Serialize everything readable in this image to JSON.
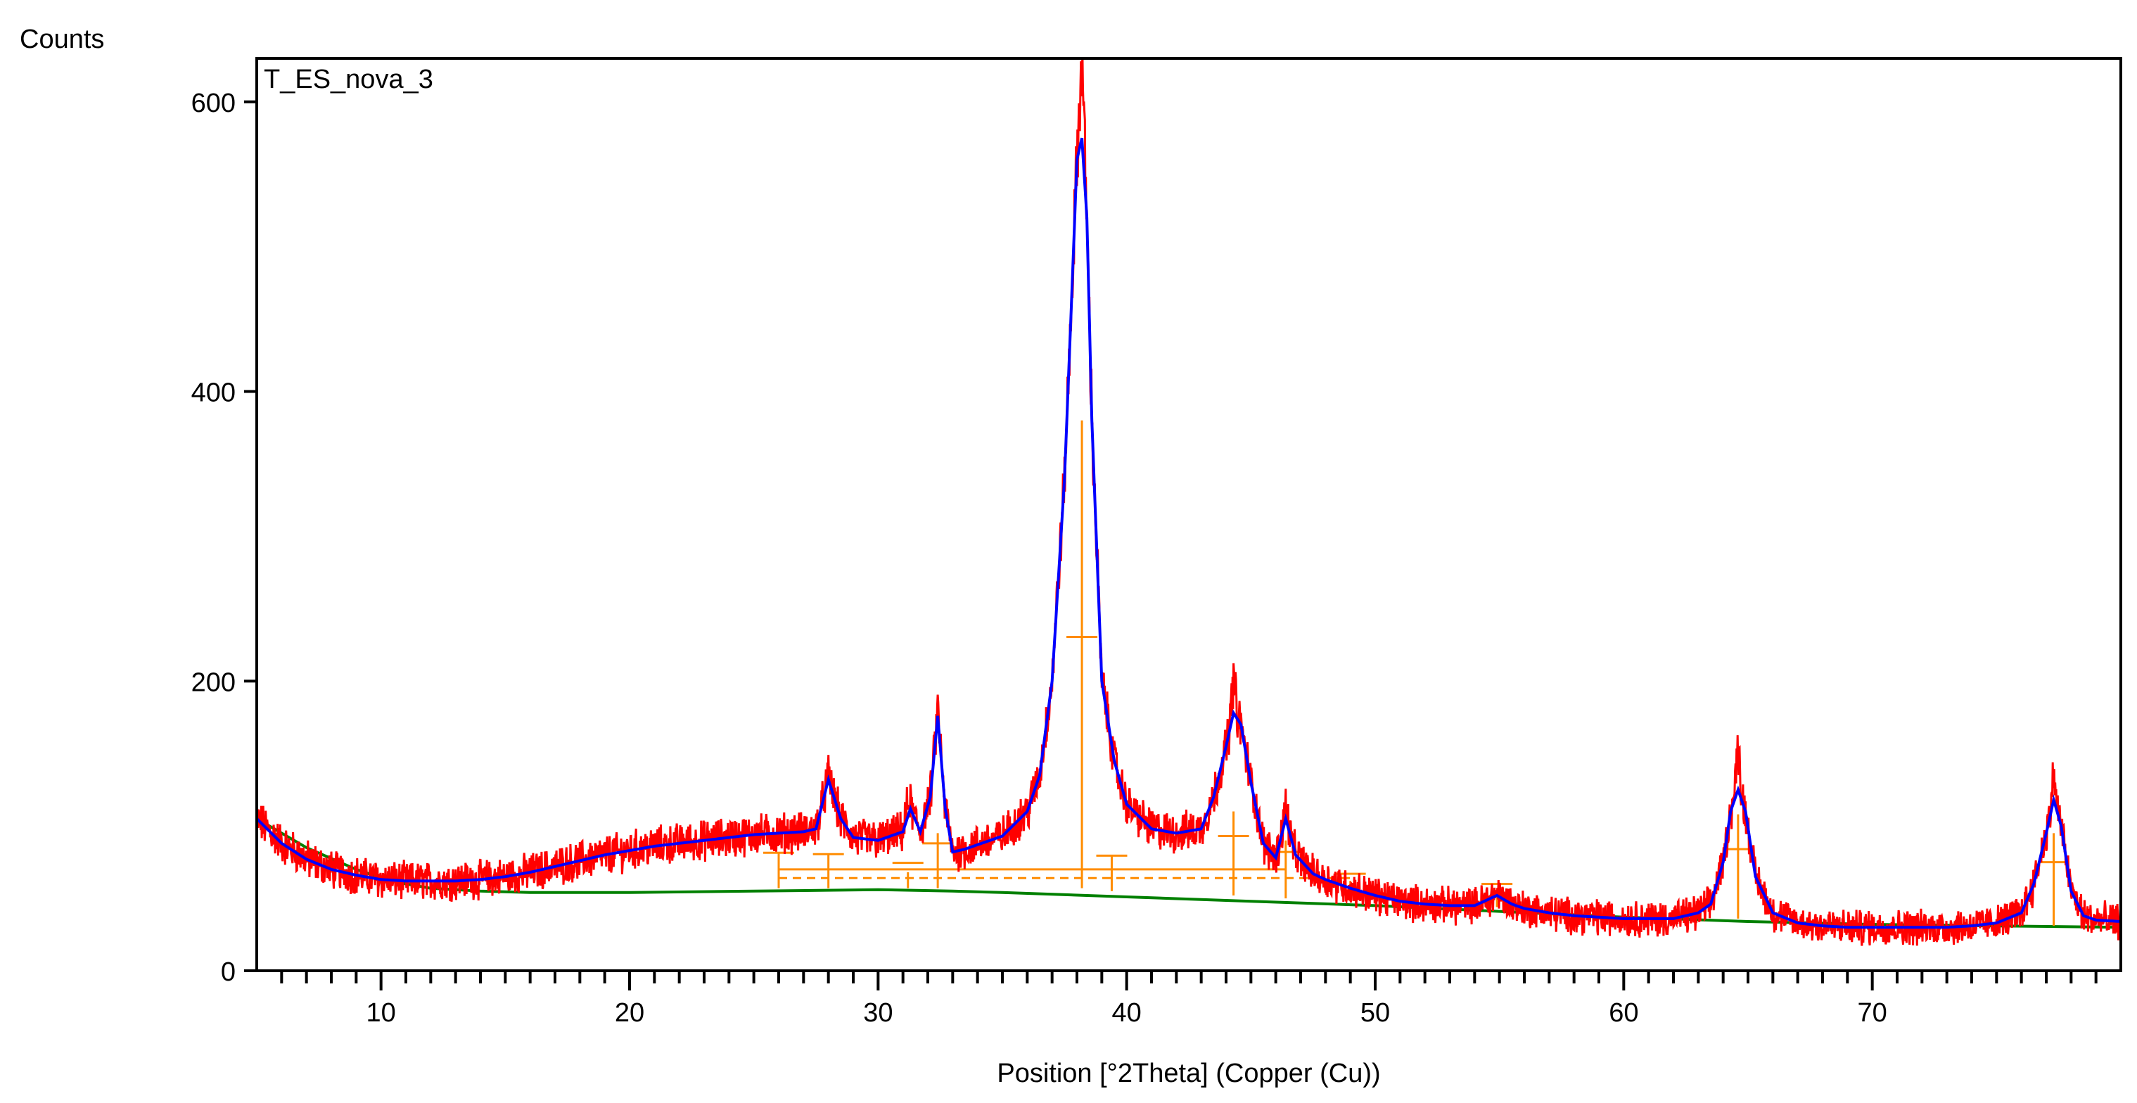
{
  "chart_data": {
    "type": "line",
    "ylabel": "Counts",
    "xlabel": "Position [°2Theta] (Copper (Cu))",
    "annotation": "T_ES_nova_3",
    "xlim": [
      5,
      80
    ],
    "ylim": [
      0,
      630
    ],
    "x_ticks": [
      10,
      20,
      30,
      40,
      50,
      60,
      70
    ],
    "y_ticks": [
      0,
      200,
      400,
      600
    ],
    "grid": false,
    "colors": {
      "observed": "#ff0000",
      "calculated": "#0000ff",
      "background": "#008000",
      "peak_markers": "#ff8c00",
      "axis": "#000000"
    },
    "series": [
      {
        "role": "observed",
        "peaks": [
          {
            "x": 28.0,
            "y": 135
          },
          {
            "x": 31.2,
            "y": 115
          },
          {
            "x": 32.4,
            "y": 180
          },
          {
            "x": 38.2,
            "y": 628
          },
          {
            "x": 44.3,
            "y": 200
          },
          {
            "x": 46.4,
            "y": 115
          },
          {
            "x": 54.9,
            "y": 55
          },
          {
            "x": 64.6,
            "y": 152
          },
          {
            "x": 77.3,
            "y": 135
          }
        ],
        "noise_amplitude": 10
      },
      {
        "role": "calculated",
        "x": [
          5,
          6,
          7,
          8,
          9,
          10,
          11,
          12,
          13,
          14,
          15,
          16,
          17,
          18,
          19,
          20,
          21,
          22,
          23,
          24,
          25,
          26,
          27,
          27.5,
          28,
          28.5,
          29,
          30,
          31,
          31.3,
          31.7,
          32.1,
          32.4,
          32.7,
          33,
          33.5,
          34,
          35,
          36,
          36.5,
          37,
          37.5,
          37.8,
          38,
          38.2,
          38.4,
          38.6,
          39,
          39.5,
          40,
          41,
          42,
          43,
          43.5,
          44,
          44.3,
          44.6,
          45,
          45.5,
          46,
          46.4,
          46.8,
          47.5,
          48,
          49,
          50,
          51,
          52,
          53,
          54,
          54.9,
          55.5,
          56,
          57,
          58,
          59,
          60,
          61,
          62,
          63,
          63.5,
          64,
          64.3,
          64.6,
          64.9,
          65.3,
          66,
          67,
          68,
          69,
          70,
          71,
          72,
          73,
          74,
          75,
          76,
          76.5,
          77,
          77.3,
          77.6,
          78,
          78.5,
          79,
          80
        ],
        "y": [
          105,
          88,
          77,
          70,
          66,
          63,
          62,
          62,
          62,
          63,
          65,
          68,
          72,
          76,
          80,
          83,
          86,
          88,
          90,
          92,
          94,
          95,
          96,
          98,
          132,
          105,
          92,
          90,
          96,
          112,
          96,
          120,
          176,
          112,
          82,
          84,
          87,
          93,
          110,
          135,
          200,
          340,
          470,
          560,
          575,
          520,
          380,
          200,
          145,
          115,
          98,
          95,
          98,
          120,
          155,
          178,
          170,
          130,
          88,
          78,
          105,
          80,
          67,
          63,
          57,
          52,
          48,
          46,
          45,
          45,
          52,
          46,
          43,
          40,
          38,
          37,
          36,
          36,
          36,
          40,
          46,
          75,
          110,
          125,
          110,
          65,
          40,
          33,
          31,
          30,
          30,
          30,
          30,
          30,
          31,
          33,
          40,
          60,
          95,
          118,
          100,
          55,
          38,
          35,
          34
        ]
      },
      {
        "role": "background",
        "x": [
          5,
          7,
          9,
          10,
          11,
          12,
          14,
          16,
          20,
          25,
          30,
          33,
          35,
          40,
          45,
          50,
          55,
          60,
          65,
          70,
          75,
          80
        ],
        "y": [
          105,
          85,
          70,
          64,
          60,
          57,
          55,
          54,
          54,
          55,
          56,
          55,
          54,
          51,
          48,
          45,
          41,
          37,
          34,
          32,
          31,
          30
        ]
      }
    ],
    "reflections": [
      {
        "x": 26.0,
        "top": 82,
        "bottom": 57
      },
      {
        "x": 28.0,
        "top": 80,
        "bottom": 57
      },
      {
        "x": 31.2,
        "top": 68,
        "bottom": 57
      },
      {
        "x": 32.4,
        "top": 95,
        "bottom": 57
      },
      {
        "x": 38.2,
        "top": 380,
        "bottom": 57
      },
      {
        "x": 39.4,
        "top": 80,
        "bottom": 55
      },
      {
        "x": 44.3,
        "top": 110,
        "bottom": 52
      },
      {
        "x": 46.4,
        "top": 90,
        "bottom": 50
      },
      {
        "x": 49.0,
        "top": 62,
        "bottom": 48
      },
      {
        "x": 54.9,
        "top": 52,
        "bottom": 44
      },
      {
        "x": 64.6,
        "top": 108,
        "bottom": 36
      },
      {
        "x": 77.3,
        "top": 95,
        "bottom": 31
      }
    ]
  }
}
